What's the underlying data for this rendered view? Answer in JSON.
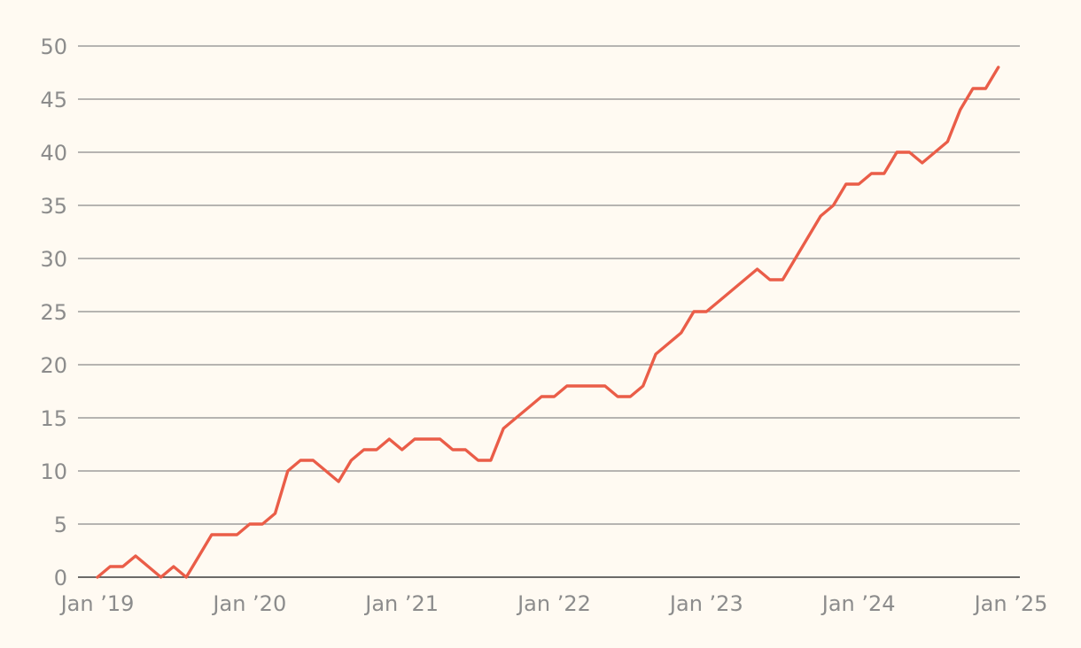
{
  "chart_data": {
    "type": "line",
    "title": "",
    "xlabel": "",
    "ylabel": "",
    "ylim": [
      0,
      50
    ],
    "xlim": [
      "2019-01",
      "2025-01"
    ],
    "grid": true,
    "legend": "none",
    "x_ticks": [
      {
        "label": "Jan ’19",
        "date": "2019-01"
      },
      {
        "label": "Jan ’20",
        "date": "2020-01"
      },
      {
        "label": "Jan ’21",
        "date": "2021-01"
      },
      {
        "label": "Jan ’22",
        "date": "2022-01"
      },
      {
        "label": "Jan ’23",
        "date": "2023-01"
      },
      {
        "label": "Jan ’24",
        "date": "2024-01"
      },
      {
        "label": "Jan ’25",
        "date": "2025-01"
      }
    ],
    "y_ticks": [
      "0",
      "5",
      "10",
      "15",
      "20",
      "25",
      "30",
      "35",
      "40",
      "45",
      "50"
    ],
    "series": [
      {
        "color": "#ea5d48",
        "points": [
          {
            "x": "2019-01",
            "y": 0
          },
          {
            "x": "2019-02",
            "y": 1
          },
          {
            "x": "2019-03",
            "y": 1
          },
          {
            "x": "2019-04",
            "y": 2
          },
          {
            "x": "2019-05",
            "y": 1
          },
          {
            "x": "2019-06",
            "y": 0
          },
          {
            "x": "2019-07",
            "y": 1
          },
          {
            "x": "2019-08",
            "y": 0
          },
          {
            "x": "2019-09",
            "y": 2
          },
          {
            "x": "2019-10",
            "y": 4
          },
          {
            "x": "2019-11",
            "y": 4
          },
          {
            "x": "2019-12",
            "y": 4
          },
          {
            "x": "2020-01",
            "y": 5
          },
          {
            "x": "2020-02",
            "y": 5
          },
          {
            "x": "2020-03",
            "y": 6
          },
          {
            "x": "2020-04",
            "y": 10
          },
          {
            "x": "2020-05",
            "y": 11
          },
          {
            "x": "2020-06",
            "y": 11
          },
          {
            "x": "2020-07",
            "y": 10
          },
          {
            "x": "2020-08",
            "y": 9
          },
          {
            "x": "2020-09",
            "y": 11
          },
          {
            "x": "2020-10",
            "y": 12
          },
          {
            "x": "2020-11",
            "y": 12
          },
          {
            "x": "2020-12",
            "y": 13
          },
          {
            "x": "2021-01",
            "y": 12
          },
          {
            "x": "2021-02",
            "y": 13
          },
          {
            "x": "2021-03",
            "y": 13
          },
          {
            "x": "2021-04",
            "y": 13
          },
          {
            "x": "2021-05",
            "y": 12
          },
          {
            "x": "2021-06",
            "y": 12
          },
          {
            "x": "2021-07",
            "y": 11
          },
          {
            "x": "2021-08",
            "y": 11
          },
          {
            "x": "2021-09",
            "y": 14
          },
          {
            "x": "2021-10",
            "y": 15
          },
          {
            "x": "2021-11",
            "y": 16
          },
          {
            "x": "2021-12",
            "y": 17
          },
          {
            "x": "2022-01",
            "y": 17
          },
          {
            "x": "2022-02",
            "y": 18
          },
          {
            "x": "2022-03",
            "y": 18
          },
          {
            "x": "2022-04",
            "y": 18
          },
          {
            "x": "2022-05",
            "y": 18
          },
          {
            "x": "2022-06",
            "y": 17
          },
          {
            "x": "2022-07",
            "y": 17
          },
          {
            "x": "2022-08",
            "y": 18
          },
          {
            "x": "2022-09",
            "y": 21
          },
          {
            "x": "2022-10",
            "y": 22
          },
          {
            "x": "2022-11",
            "y": 23
          },
          {
            "x": "2022-12",
            "y": 25
          },
          {
            "x": "2023-01",
            "y": 25
          },
          {
            "x": "2023-02",
            "y": 26
          },
          {
            "x": "2023-03",
            "y": 27
          },
          {
            "x": "2023-04",
            "y": 28
          },
          {
            "x": "2023-05",
            "y": 29
          },
          {
            "x": "2023-06",
            "y": 28
          },
          {
            "x": "2023-07",
            "y": 28
          },
          {
            "x": "2023-08",
            "y": 30
          },
          {
            "x": "2023-09",
            "y": 32
          },
          {
            "x": "2023-10",
            "y": 34
          },
          {
            "x": "2023-11",
            "y": 35
          },
          {
            "x": "2023-12",
            "y": 37
          },
          {
            "x": "2024-01",
            "y": 37
          },
          {
            "x": "2024-02",
            "y": 38
          },
          {
            "x": "2024-03",
            "y": 38
          },
          {
            "x": "2024-04",
            "y": 40
          },
          {
            "x": "2024-05",
            "y": 40
          },
          {
            "x": "2024-06",
            "y": 39
          },
          {
            "x": "2024-07",
            "y": 40
          },
          {
            "x": "2024-08",
            "y": 41
          },
          {
            "x": "2024-09",
            "y": 44
          },
          {
            "x": "2024-10",
            "y": 46
          },
          {
            "x": "2024-11",
            "y": 46
          },
          {
            "x": "2024-12",
            "y": 48
          }
        ]
      }
    ]
  }
}
